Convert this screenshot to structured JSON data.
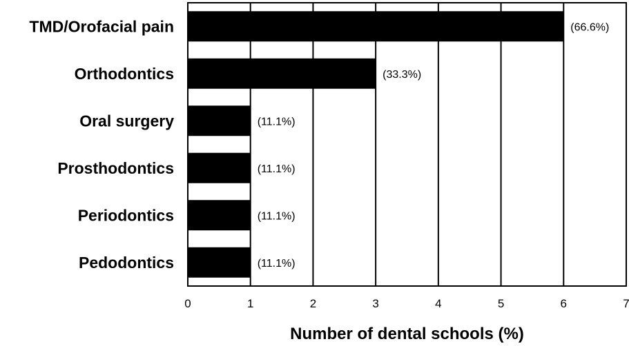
{
  "chart_data": {
    "type": "bar",
    "orientation": "horizontal",
    "title": "",
    "xlabel": "Number of dental schools (%)",
    "ylabel": "",
    "xlim": [
      0,
      7
    ],
    "xticks": [
      "0",
      "1",
      "2",
      "3",
      "4",
      "5",
      "6",
      "7"
    ],
    "grid": true,
    "categories": [
      "TMD/Orofacial pain",
      "Orthodontics",
      "Oral surgery",
      "Prosthodontics",
      "Periodontics",
      "Pedodontics"
    ],
    "values": [
      6,
      3,
      1,
      1,
      1,
      1
    ],
    "data_labels": [
      "(66.6%)",
      "(33.3%)",
      "(11.1%)",
      "(11.1%)",
      "(11.1%)",
      "(11.1%)"
    ],
    "colors": {
      "bar": "#000000",
      "grid": "#000000",
      "background": "#ffffff"
    }
  }
}
